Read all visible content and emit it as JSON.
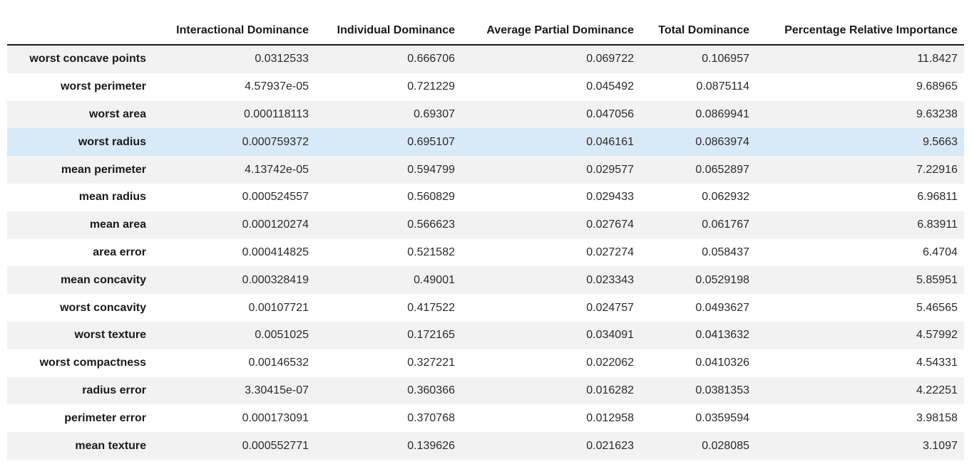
{
  "chart_data": {
    "type": "table",
    "columns": [
      "Interactional Dominance",
      "Individual Dominance",
      "Average Partial Dominance",
      "Total Dominance",
      "Percentage Relative Importance"
    ],
    "corner_label": "",
    "rows": [
      {
        "feature": "worst concave points",
        "values": [
          "0.0312533",
          "0.666706",
          "0.069722",
          "0.106957",
          "11.8427"
        ]
      },
      {
        "feature": "worst perimeter",
        "values": [
          "4.57937e-05",
          "0.721229",
          "0.045492",
          "0.0875114",
          "9.68965"
        ]
      },
      {
        "feature": "worst area",
        "values": [
          "0.000118113",
          "0.69307",
          "0.047056",
          "0.0869941",
          "9.63238"
        ]
      },
      {
        "feature": "worst radius",
        "values": [
          "0.000759372",
          "0.695107",
          "0.046161",
          "0.0863974",
          "9.5663"
        ]
      },
      {
        "feature": "mean perimeter",
        "values": [
          "4.13742e-05",
          "0.594799",
          "0.029577",
          "0.0652897",
          "7.22916"
        ]
      },
      {
        "feature": "mean radius",
        "values": [
          "0.000524557",
          "0.560829",
          "0.029433",
          "0.062932",
          "6.96811"
        ]
      },
      {
        "feature": "mean area",
        "values": [
          "0.000120274",
          "0.566623",
          "0.027674",
          "0.061767",
          "6.83911"
        ]
      },
      {
        "feature": "area error",
        "values": [
          "0.000414825",
          "0.521582",
          "0.027274",
          "0.058437",
          "6.4704"
        ]
      },
      {
        "feature": "mean concavity",
        "values": [
          "0.000328419",
          "0.49001",
          "0.023343",
          "0.0529198",
          "5.85951"
        ]
      },
      {
        "feature": "worst concavity",
        "values": [
          "0.00107721",
          "0.417522",
          "0.024757",
          "0.0493627",
          "5.46565"
        ]
      },
      {
        "feature": "worst texture",
        "values": [
          "0.0051025",
          "0.172165",
          "0.034091",
          "0.0413632",
          "4.57992"
        ]
      },
      {
        "feature": "worst compactness",
        "values": [
          "0.00146532",
          "0.327221",
          "0.022062",
          "0.0410326",
          "4.54331"
        ]
      },
      {
        "feature": "radius error",
        "values": [
          "3.30415e-07",
          "0.360366",
          "0.016282",
          "0.0381353",
          "4.22251"
        ]
      },
      {
        "feature": "perimeter error",
        "values": [
          "0.000173091",
          "0.370768",
          "0.012958",
          "0.0359594",
          "3.98158"
        ]
      },
      {
        "feature": "mean texture",
        "values": [
          "0.000552771",
          "0.139626",
          "0.021623",
          "0.028085",
          "3.1097"
        ]
      }
    ],
    "highlighted_row": "worst radius",
    "layout": {
      "grid": "off",
      "legend": "none",
      "row_header_alignment": "right",
      "value_alignment": "right"
    },
    "colors": {
      "alt_row_bg": "#f2f2f2",
      "highlight_row_bg": "#d8e9f8",
      "header_rule": "#1a1a1a",
      "header_text": "#1a1a1a",
      "value_text": "#2b2b2b",
      "page_bg": "#ffffff"
    }
  }
}
